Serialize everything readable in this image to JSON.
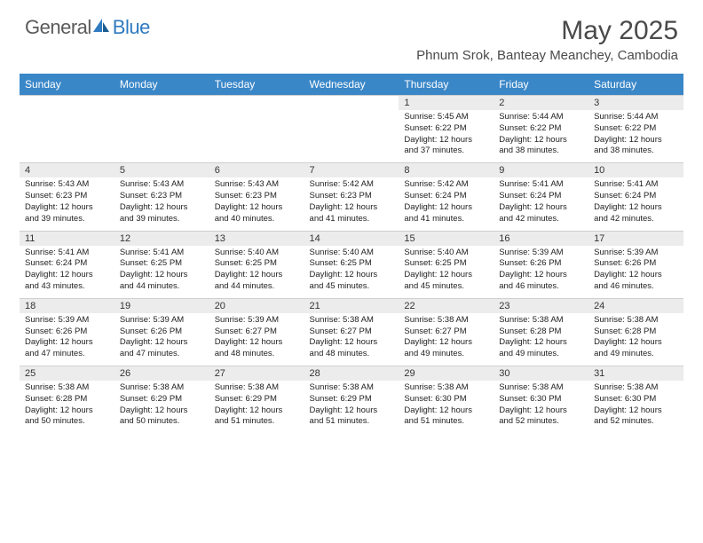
{
  "logo": {
    "textGeneral": "General",
    "textBlue": "Blue"
  },
  "title": "May 2025",
  "location": "Phnum Srok, Banteay Meanchey, Cambodia",
  "colors": {
    "headerBg": "#3a87c8",
    "headerText": "#ffffff",
    "dayNumBg": "#ececec",
    "bodyText": "#222222",
    "logoGray": "#5a5a5a",
    "logoBlue": "#2f7ac0"
  },
  "dayNames": [
    "Sunday",
    "Monday",
    "Tuesday",
    "Wednesday",
    "Thursday",
    "Friday",
    "Saturday"
  ],
  "weeks": [
    [
      null,
      null,
      null,
      null,
      {
        "n": "1",
        "sr": "5:45 AM",
        "ss": "6:22 PM",
        "dl": "12 hours and 37 minutes."
      },
      {
        "n": "2",
        "sr": "5:44 AM",
        "ss": "6:22 PM",
        "dl": "12 hours and 38 minutes."
      },
      {
        "n": "3",
        "sr": "5:44 AM",
        "ss": "6:22 PM",
        "dl": "12 hours and 38 minutes."
      }
    ],
    [
      {
        "n": "4",
        "sr": "5:43 AM",
        "ss": "6:23 PM",
        "dl": "12 hours and 39 minutes."
      },
      {
        "n": "5",
        "sr": "5:43 AM",
        "ss": "6:23 PM",
        "dl": "12 hours and 39 minutes."
      },
      {
        "n": "6",
        "sr": "5:43 AM",
        "ss": "6:23 PM",
        "dl": "12 hours and 40 minutes."
      },
      {
        "n": "7",
        "sr": "5:42 AM",
        "ss": "6:23 PM",
        "dl": "12 hours and 41 minutes."
      },
      {
        "n": "8",
        "sr": "5:42 AM",
        "ss": "6:24 PM",
        "dl": "12 hours and 41 minutes."
      },
      {
        "n": "9",
        "sr": "5:41 AM",
        "ss": "6:24 PM",
        "dl": "12 hours and 42 minutes."
      },
      {
        "n": "10",
        "sr": "5:41 AM",
        "ss": "6:24 PM",
        "dl": "12 hours and 42 minutes."
      }
    ],
    [
      {
        "n": "11",
        "sr": "5:41 AM",
        "ss": "6:24 PM",
        "dl": "12 hours and 43 minutes."
      },
      {
        "n": "12",
        "sr": "5:41 AM",
        "ss": "6:25 PM",
        "dl": "12 hours and 44 minutes."
      },
      {
        "n": "13",
        "sr": "5:40 AM",
        "ss": "6:25 PM",
        "dl": "12 hours and 44 minutes."
      },
      {
        "n": "14",
        "sr": "5:40 AM",
        "ss": "6:25 PM",
        "dl": "12 hours and 45 minutes."
      },
      {
        "n": "15",
        "sr": "5:40 AM",
        "ss": "6:25 PM",
        "dl": "12 hours and 45 minutes."
      },
      {
        "n": "16",
        "sr": "5:39 AM",
        "ss": "6:26 PM",
        "dl": "12 hours and 46 minutes."
      },
      {
        "n": "17",
        "sr": "5:39 AM",
        "ss": "6:26 PM",
        "dl": "12 hours and 46 minutes."
      }
    ],
    [
      {
        "n": "18",
        "sr": "5:39 AM",
        "ss": "6:26 PM",
        "dl": "12 hours and 47 minutes."
      },
      {
        "n": "19",
        "sr": "5:39 AM",
        "ss": "6:26 PM",
        "dl": "12 hours and 47 minutes."
      },
      {
        "n": "20",
        "sr": "5:39 AM",
        "ss": "6:27 PM",
        "dl": "12 hours and 48 minutes."
      },
      {
        "n": "21",
        "sr": "5:38 AM",
        "ss": "6:27 PM",
        "dl": "12 hours and 48 minutes."
      },
      {
        "n": "22",
        "sr": "5:38 AM",
        "ss": "6:27 PM",
        "dl": "12 hours and 49 minutes."
      },
      {
        "n": "23",
        "sr": "5:38 AM",
        "ss": "6:28 PM",
        "dl": "12 hours and 49 minutes."
      },
      {
        "n": "24",
        "sr": "5:38 AM",
        "ss": "6:28 PM",
        "dl": "12 hours and 49 minutes."
      }
    ],
    [
      {
        "n": "25",
        "sr": "5:38 AM",
        "ss": "6:28 PM",
        "dl": "12 hours and 50 minutes."
      },
      {
        "n": "26",
        "sr": "5:38 AM",
        "ss": "6:29 PM",
        "dl": "12 hours and 50 minutes."
      },
      {
        "n": "27",
        "sr": "5:38 AM",
        "ss": "6:29 PM",
        "dl": "12 hours and 51 minutes."
      },
      {
        "n": "28",
        "sr": "5:38 AM",
        "ss": "6:29 PM",
        "dl": "12 hours and 51 minutes."
      },
      {
        "n": "29",
        "sr": "5:38 AM",
        "ss": "6:30 PM",
        "dl": "12 hours and 51 minutes."
      },
      {
        "n": "30",
        "sr": "5:38 AM",
        "ss": "6:30 PM",
        "dl": "12 hours and 52 minutes."
      },
      {
        "n": "31",
        "sr": "5:38 AM",
        "ss": "6:30 PM",
        "dl": "12 hours and 52 minutes."
      }
    ]
  ],
  "labels": {
    "sunrise": "Sunrise:",
    "sunset": "Sunset:",
    "daylight": "Daylight:"
  }
}
